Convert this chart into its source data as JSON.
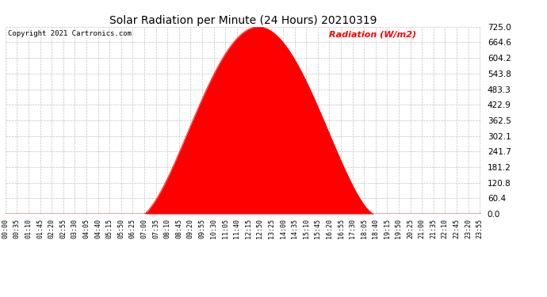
{
  "title": "Solar Radiation per Minute (24 Hours) 20210319",
  "copyright_text": "Copyright 2021 Cartronics.com",
  "legend_text": "Radiation (W/m2)",
  "fill_color": "#ff0000",
  "line_color": "#ff0000",
  "background_color": "#ffffff",
  "grid_color": "#bbbbbb",
  "dashed_line_color": "#ff0000",
  "ylim": [
    0.0,
    725.0
  ],
  "yticks": [
    0.0,
    60.4,
    120.8,
    181.2,
    241.7,
    302.1,
    362.5,
    422.9,
    483.3,
    543.8,
    604.2,
    664.6,
    725.0
  ],
  "peak_hour": 12.417,
  "peak_value": 725.0,
  "rise_hour": 6.917,
  "set_hour": 18.583,
  "total_minutes": 1440,
  "title_fontsize": 10,
  "copyright_fontsize": 6.5,
  "legend_fontsize": 8,
  "tick_fontsize": 6
}
